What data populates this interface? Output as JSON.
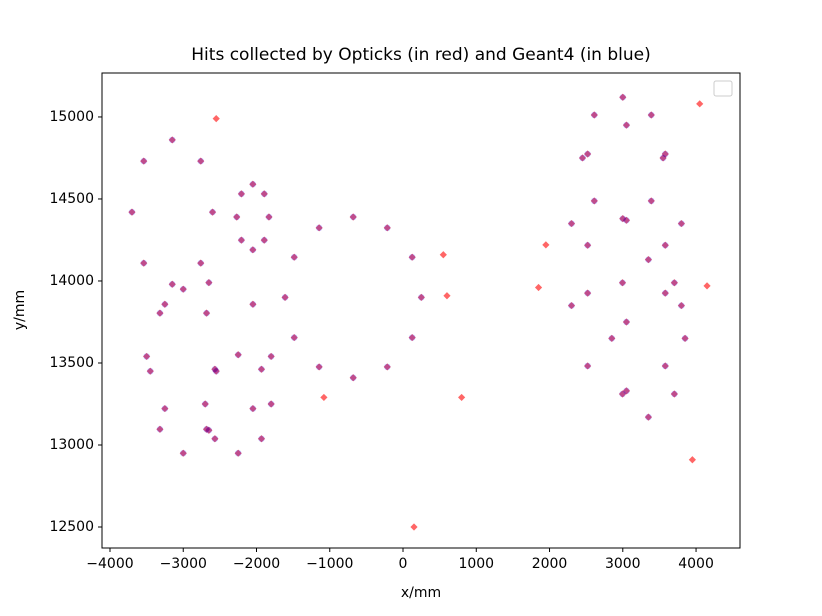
{
  "chart_data": {
    "type": "scatter",
    "title": "Hits collected by Opticks (in red) and Geant4 (in blue)",
    "x_label": "x/mm",
    "y_label": "y/mm",
    "xlim": [
      -4109,
      4600
    ],
    "ylim": [
      12372,
      15268
    ],
    "xticks": [
      {
        "value": -4000,
        "label": "−4000"
      },
      {
        "value": -3000,
        "label": "−3000"
      },
      {
        "value": -2000,
        "label": "−2000"
      },
      {
        "value": -1000,
        "label": "−1000"
      },
      0,
      1000,
      2000,
      3000,
      4000
    ],
    "yticks": [
      12500,
      13000,
      13500,
      14000,
      14500,
      15000
    ],
    "series": [
      {
        "color": "#ff0000",
        "marker": "diamond",
        "x": [
          250,
          125,
          -215,
          -680,
          -1145,
          -1485,
          -1610,
          -1485,
          -1145,
          -680,
          -215,
          125,
          -2600,
          -2761,
          -3150,
          -3539,
          -3700,
          -3539,
          -3150,
          -2761,
          -1830,
          -1894,
          -2050,
          -2206,
          -2270,
          -2206,
          -2050,
          -1894,
          -1800,
          -2049,
          -2650,
          -3251,
          -3500,
          -3251,
          -2650,
          -2049,
          -1800,
          -1932,
          -2250,
          -2568,
          -2700,
          -2568,
          -2250,
          -1932,
          -2550,
          -2682,
          -3000,
          -3318,
          -3450,
          -3318,
          -3000,
          -2682,
          3550,
          3389,
          3000,
          2611,
          2450,
          2611,
          3000,
          3389,
          3800,
          3580,
          3050,
          2520,
          2300,
          2520,
          3050,
          3580,
          3800,
          3580,
          3050,
          2520,
          2300,
          2520,
          3050,
          3580,
          3850,
          3704,
          3350,
          2996,
          2850,
          2996,
          3350,
          3704,
          -2550,
          550,
          600,
          -1080,
          800,
          150,
          1950,
          1850,
          4050,
          4150,
          3950
        ],
        "y": [
          13900,
          14145,
          14324,
          14390,
          14324,
          14145,
          13900,
          13655,
          13476,
          13410,
          13476,
          13655,
          14420,
          14731,
          14860,
          14731,
          14420,
          14109,
          13980,
          14109,
          14390,
          14531,
          14590,
          14531,
          14390,
          14249,
          14190,
          14249,
          13540,
          13858,
          13990,
          13858,
          13540,
          13222,
          13090,
          13222,
          13250,
          13462,
          13550,
          13462,
          13250,
          13038,
          12950,
          13038,
          13450,
          13804,
          13950,
          13804,
          13450,
          13096,
          12950,
          13096,
          14750,
          15012,
          15120,
          15012,
          14750,
          14488,
          14380,
          14488,
          14350,
          14774,
          14950,
          14774,
          14350,
          13926,
          13750,
          13926,
          13850,
          14218,
          14370,
          14218,
          13850,
          13482,
          13330,
          13482,
          13650,
          13989,
          14130,
          13989,
          13650,
          13311,
          13170,
          13311,
          14990,
          14160,
          13910,
          13290,
          13290,
          12500,
          14220,
          13960,
          15080,
          13970,
          12910
        ]
      },
      {
        "color": "#0000ff",
        "marker": "circle",
        "x": [
          250,
          125,
          -215,
          -680,
          -1145,
          -1485,
          -1610,
          -1485,
          -1145,
          -680,
          -215,
          125,
          -2600,
          -2761,
          -3150,
          -3539,
          -3700,
          -3539,
          -3150,
          -2761,
          -1830,
          -1894,
          -2050,
          -2206,
          -2270,
          -2206,
          -2050,
          -1894,
          -1800,
          -2049,
          -2650,
          -3251,
          -3500,
          -3251,
          -2650,
          -2049,
          -1800,
          -1932,
          -2250,
          -2568,
          -2700,
          -2568,
          -2250,
          -1932,
          -2550,
          -2682,
          -3000,
          -3318,
          -3450,
          -3318,
          -3000,
          -2682,
          3550,
          3389,
          3000,
          2611,
          2450,
          2611,
          3000,
          3389,
          3800,
          3580,
          3050,
          2520,
          2300,
          2520,
          3050,
          3580,
          3800,
          3580,
          3050,
          2520,
          2300,
          2520,
          3050,
          3580,
          3850,
          3704,
          3350,
          2996,
          2850,
          2996,
          3350,
          3704
        ],
        "y": [
          13900,
          14145,
          14324,
          14390,
          14324,
          14145,
          13900,
          13655,
          13476,
          13410,
          13476,
          13655,
          14420,
          14731,
          14860,
          14731,
          14420,
          14109,
          13980,
          14109,
          14390,
          14531,
          14590,
          14531,
          14390,
          14249,
          14190,
          14249,
          13540,
          13858,
          13990,
          13858,
          13540,
          13222,
          13090,
          13222,
          13250,
          13462,
          13550,
          13462,
          13250,
          13038,
          12950,
          13038,
          13450,
          13804,
          13950,
          13804,
          13450,
          13096,
          12950,
          13096,
          14750,
          15012,
          15120,
          15012,
          14750,
          14488,
          14380,
          14488,
          14350,
          14774,
          14950,
          14774,
          14350,
          13926,
          13750,
          13926,
          13850,
          14218,
          14370,
          14218,
          13850,
          13482,
          13330,
          13482,
          13650,
          13989,
          14130,
          13989,
          13650,
          13311,
          13170,
          13311
        ]
      }
    ]
  }
}
